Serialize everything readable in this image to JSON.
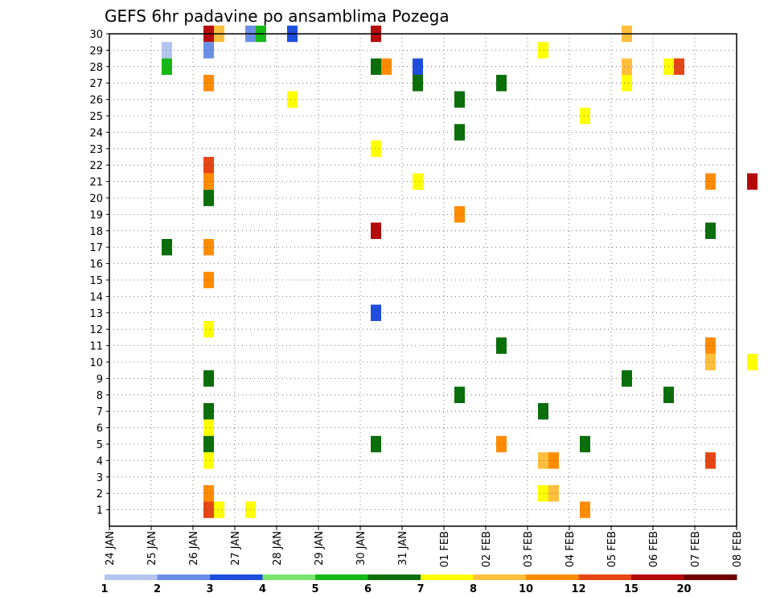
{
  "chart_data": {
    "type": "heatmap",
    "title": "GEFS 6hr padavine po ansamblima Pozega",
    "xlabel": "",
    "ylabel": "",
    "x_tick_labels": [
      "24 JAN",
      "25 JAN",
      "26 JAN",
      "27 JAN",
      "28 JAN",
      "29 JAN",
      "30 JAN",
      "31 JAN",
      "01 FEB",
      "02 FEB",
      "03 FEB",
      "04 FEB",
      "05 FEB",
      "06 FEB",
      "07 FEB",
      "08 FEB"
    ],
    "y_tick_labels": [
      "1",
      "2",
      "3",
      "4",
      "5",
      "6",
      "7",
      "8",
      "9",
      "10",
      "11",
      "12",
      "13",
      "14",
      "15",
      "16",
      "17",
      "18",
      "19",
      "20",
      "21",
      "22",
      "23",
      "24",
      "25",
      "26",
      "27",
      "28",
      "29",
      "30"
    ],
    "grid": true,
    "colorbar": {
      "levels": [
        "1",
        "2",
        "3",
        "4",
        "5",
        "6",
        "7",
        "8",
        "10",
        "12",
        "15",
        "20"
      ],
      "colors": [
        "#b4c5f0",
        "#6b8fe6",
        "#1f4ede",
        "#7ae66e",
        "#14b914",
        "#0a6e0a",
        "#ffff00",
        "#ffbe3c",
        "#ff8c00",
        "#e64614",
        "#b40a0a",
        "#6e0000"
      ]
    },
    "cells": [
      {
        "day": "30",
        "date": "26 JAN",
        "value": 15
      },
      {
        "day": "30",
        "date": "26 JAN",
        "value": 8
      },
      {
        "day": "30",
        "date": "27 JAN",
        "value": 2
      },
      {
        "day": "30",
        "date": "27 JAN",
        "value": 5
      },
      {
        "day": "30",
        "date": "28 JAN",
        "value": 3
      },
      {
        "day": "30",
        "date": "30 JAN",
        "value": 15
      },
      {
        "day": "30",
        "date": "05 FEB",
        "value": 8
      },
      {
        "day": "29",
        "date": "25 JAN",
        "value": 1
      },
      {
        "day": "29",
        "date": "26 JAN",
        "value": 2
      },
      {
        "day": "29",
        "date": "03 FEB",
        "value": 7
      },
      {
        "day": "28",
        "date": "25 JAN",
        "value": 5
      },
      {
        "day": "28",
        "date": "30 JAN",
        "value": 6
      },
      {
        "day": "28",
        "date": "30 JAN",
        "value": 10
      },
      {
        "day": "28",
        "date": "31 JAN",
        "value": 3
      },
      {
        "day": "28",
        "date": "05 FEB",
        "value": 8
      },
      {
        "day": "28",
        "date": "06 FEB",
        "value": 7
      },
      {
        "day": "28",
        "date": "06 FEB",
        "value": 12
      },
      {
        "day": "27",
        "date": "26 JAN",
        "value": 10
      },
      {
        "day": "27",
        "date": "31 JAN",
        "value": 6
      },
      {
        "day": "27",
        "date": "02 FEB",
        "value": 6
      },
      {
        "day": "27",
        "date": "05 FEB",
        "value": 7
      },
      {
        "day": "26",
        "date": "28 JAN",
        "value": 7
      },
      {
        "day": "26",
        "date": "01 FEB",
        "value": 6
      },
      {
        "day": "25",
        "date": "04 FEB",
        "value": 7
      },
      {
        "day": "24",
        "date": "01 FEB",
        "value": 6
      },
      {
        "day": "23",
        "date": "30 JAN",
        "value": 7
      },
      {
        "day": "22",
        "date": "26 JAN",
        "value": 12
      },
      {
        "day": "21",
        "date": "26 JAN",
        "value": 10
      },
      {
        "day": "21",
        "date": "31 JAN",
        "value": 7
      },
      {
        "day": "21",
        "date": "07 FEB",
        "value": 10
      },
      {
        "day": "21",
        "date": "08 FEB",
        "value": 15
      },
      {
        "day": "20",
        "date": "26 JAN",
        "value": 6
      },
      {
        "day": "19",
        "date": "01 FEB",
        "value": 10
      },
      {
        "day": "18",
        "date": "30 JAN",
        "value": 15
      },
      {
        "day": "18",
        "date": "07 FEB",
        "value": 6
      },
      {
        "day": "17",
        "date": "25 JAN",
        "value": 6
      },
      {
        "day": "17",
        "date": "26 JAN",
        "value": 10
      },
      {
        "day": "15",
        "date": "26 JAN",
        "value": 10
      },
      {
        "day": "13",
        "date": "30 JAN",
        "value": 3
      },
      {
        "day": "12",
        "date": "26 JAN",
        "value": 7
      },
      {
        "day": "11",
        "date": "02 FEB",
        "value": 6
      },
      {
        "day": "11",
        "date": "07 FEB",
        "value": 10
      },
      {
        "day": "10",
        "date": "07 FEB",
        "value": 8
      },
      {
        "day": "10",
        "date": "08 FEB",
        "value": 7
      },
      {
        "day": "9",
        "date": "26 JAN",
        "value": 6
      },
      {
        "day": "9",
        "date": "05 FEB",
        "value": 6
      },
      {
        "day": "8",
        "date": "01 FEB",
        "value": 6
      },
      {
        "day": "8",
        "date": "06 FEB",
        "value": 6
      },
      {
        "day": "7",
        "date": "26 JAN",
        "value": 6
      },
      {
        "day": "7",
        "date": "03 FEB",
        "value": 6
      },
      {
        "day": "6",
        "date": "26 JAN",
        "value": 7
      },
      {
        "day": "5",
        "date": "26 JAN",
        "value": 6
      },
      {
        "day": "5",
        "date": "30 JAN",
        "value": 6
      },
      {
        "day": "5",
        "date": "02 FEB",
        "value": 10
      },
      {
        "day": "5",
        "date": "04 FEB",
        "value": 6
      },
      {
        "day": "4",
        "date": "26 JAN",
        "value": 7
      },
      {
        "day": "4",
        "date": "03 FEB",
        "value": 8
      },
      {
        "day": "4",
        "date": "03 FEB",
        "value": 10
      },
      {
        "day": "4",
        "date": "07 FEB",
        "value": 12
      },
      {
        "day": "2",
        "date": "26 JAN",
        "value": 10
      },
      {
        "day": "2",
        "date": "03 FEB",
        "value": 7
      },
      {
        "day": "2",
        "date": "03 FEB",
        "value": 8
      },
      {
        "day": "1",
        "date": "26 JAN",
        "value": 12
      },
      {
        "day": "1",
        "date": "26 JAN",
        "value": 7
      },
      {
        "day": "1",
        "date": "27 JAN",
        "value": 7
      },
      {
        "day": "1",
        "date": "04 FEB",
        "value": 10
      }
    ]
  }
}
